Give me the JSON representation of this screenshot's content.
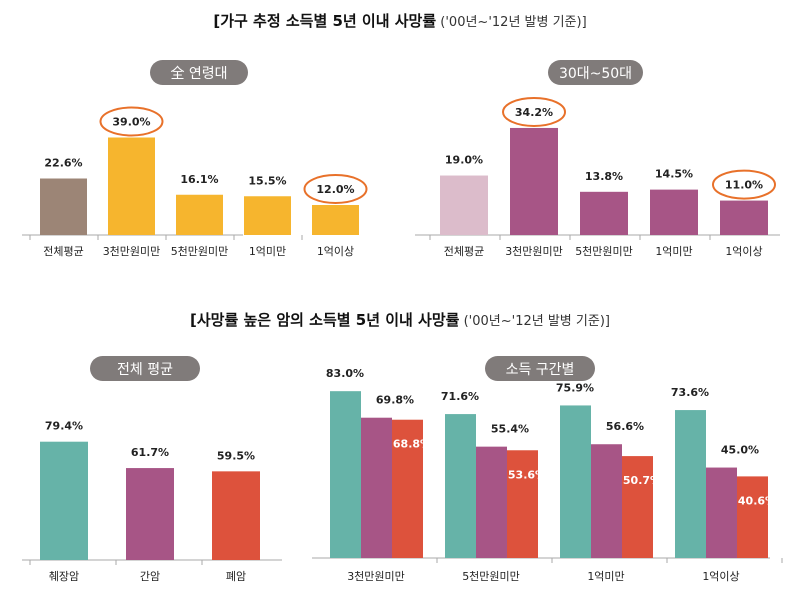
{
  "titles": {
    "top": {
      "main": "[가구 추정 소득별 5년 이내 사망률",
      "sub": " ('00년~'12년 발병 기준)]"
    },
    "bottom": {
      "main": "[사망률 높은 암의 소득별 5년 이내 사망률",
      "sub": " ('00년~'12년 발병 기준)]"
    }
  },
  "chart_data": [
    {
      "type": "bar",
      "title": "全 연령대",
      "categories": [
        "전체평균",
        "3천만원미만",
        "5천만원미만",
        "1억미만",
        "1억이상"
      ],
      "values": [
        22.6,
        39.0,
        16.1,
        15.5,
        12.0
      ],
      "labels": [
        "22.6%",
        "39.0%",
        "16.1%",
        "15.5%",
        "12.0%"
      ],
      "colors": [
        "#9c8576",
        "#f6b52e",
        "#f6b52e",
        "#f6b52e",
        "#f6b52e"
      ],
      "highlighted": [
        "3천만원미만",
        "1억이상"
      ]
    },
    {
      "type": "bar",
      "title": "30대~50대",
      "categories": [
        "전체평균",
        "3천만원미만",
        "5천만원미만",
        "1억미만",
        "1억이상"
      ],
      "values": [
        19.0,
        34.2,
        13.8,
        14.5,
        11.0
      ],
      "labels": [
        "19.0%",
        "34.2%",
        "13.8%",
        "14.5%",
        "11.0%"
      ],
      "colors": [
        "#dcbccb",
        "#a75586",
        "#a75586",
        "#a75586",
        "#a75586"
      ],
      "highlighted": [
        "3천만원미만",
        "1억이상"
      ]
    },
    {
      "type": "bar",
      "title": "전체 평균",
      "categories": [
        "췌장암",
        "간암",
        "폐암"
      ],
      "values": [
        79.4,
        61.7,
        59.5
      ],
      "labels": [
        "79.4%",
        "61.7%",
        "59.5%"
      ],
      "colors": [
        "#66b3a8",
        "#a75586",
        "#dd523c"
      ]
    },
    {
      "type": "bar",
      "title": "소득 구간별",
      "categories": [
        "3천만원미만",
        "5천만원미만",
        "1억미만",
        "1억이상"
      ],
      "series": [
        {
          "values": [
            83.0,
            71.6,
            75.9,
            73.6
          ],
          "labels": [
            "83.0%",
            "71.6%",
            "75.9%",
            "73.6%"
          ],
          "color": "#66b3a8"
        },
        {
          "values": [
            69.8,
            55.4,
            56.6,
            45.0
          ],
          "labels": [
            "69.8%",
            "55.4%",
            "56.6%",
            "45.0%"
          ],
          "color": "#a75586"
        },
        {
          "values": [
            68.8,
            53.6,
            50.7,
            40.6
          ],
          "labels": [
            "68.8%",
            "53.6%",
            "50.7%",
            "40.6%"
          ],
          "color": "#dd523c"
        }
      ]
    }
  ]
}
